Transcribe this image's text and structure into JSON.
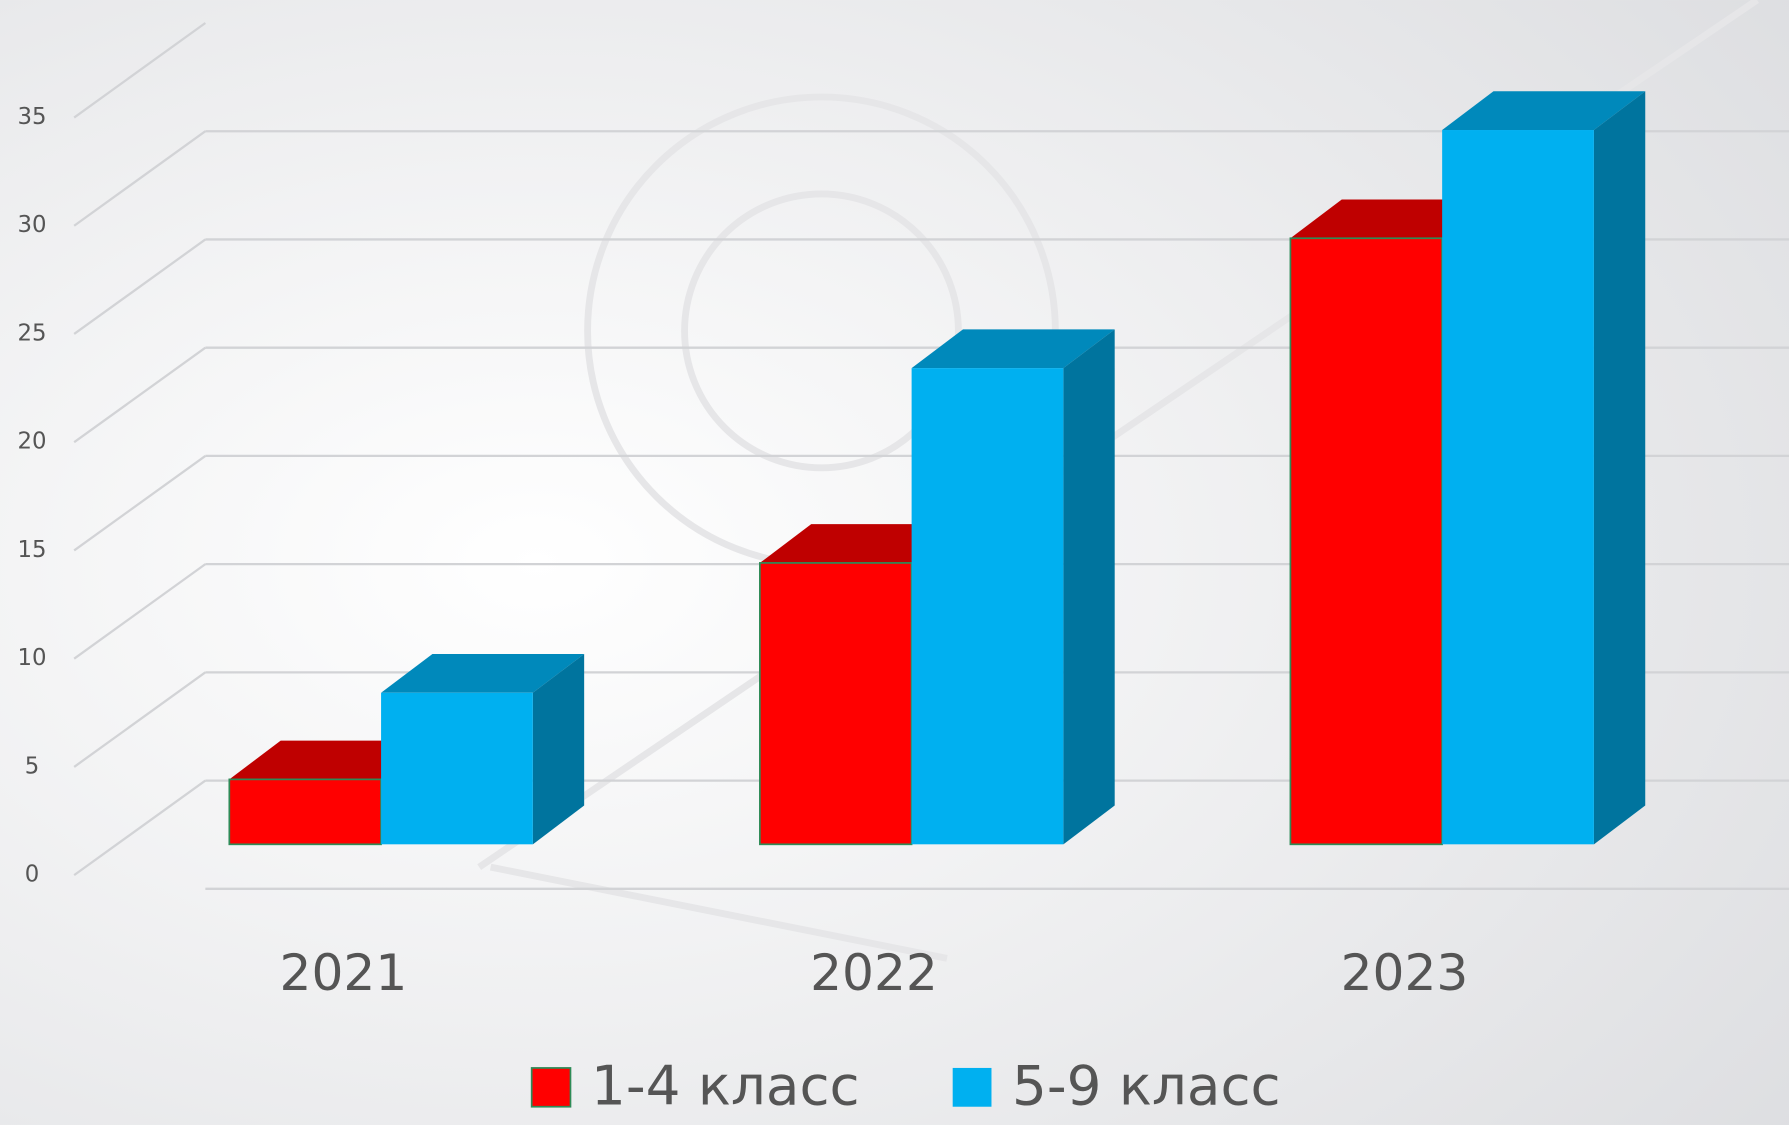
{
  "chart_data": {
    "type": "bar3d",
    "categories": [
      "2021",
      "2022",
      "2023"
    ],
    "series": [
      {
        "name": "1-4 класс",
        "color": "#ff0000",
        "values": [
          3,
          13,
          28
        ]
      },
      {
        "name": "5-9 класс",
        "color": "#00b0f0",
        "values": [
          7,
          22,
          33
        ]
      }
    ],
    "ylim": [
      0,
      35
    ],
    "yticks": [
      0,
      5,
      10,
      15,
      20,
      25,
      30,
      35
    ],
    "grid": true,
    "legend": "bottom"
  }
}
